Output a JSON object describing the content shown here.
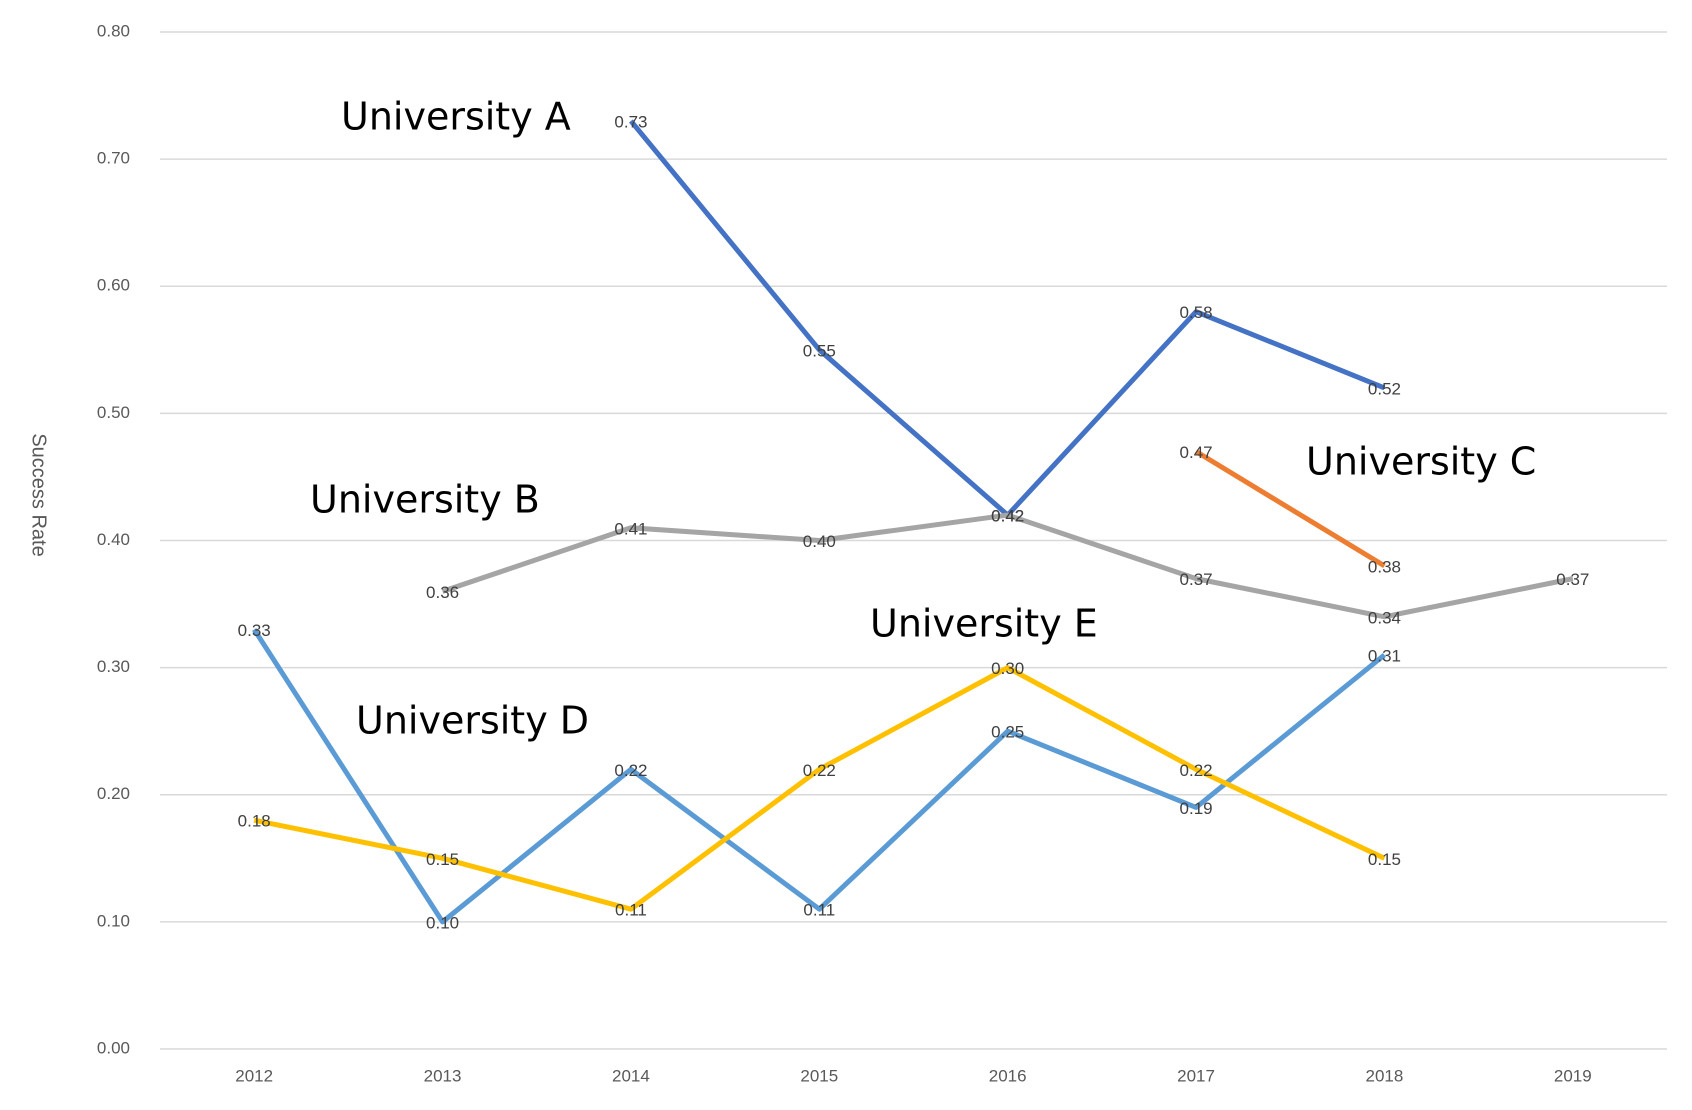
{
  "chart_data": {
    "type": "line",
    "y_label": "Success Rate",
    "categories": [
      "2012",
      "2013",
      "2014",
      "2015",
      "2016",
      "2017",
      "2018",
      "2019"
    ],
    "series": [
      {
        "name": "University A",
        "color": "#4472c4",
        "values": [
          null,
          null,
          0.73,
          0.55,
          0.42,
          0.58,
          0.52,
          null
        ]
      },
      {
        "name": "University B",
        "color": "#a5a5a5",
        "values": [
          null,
          0.36,
          0.41,
          0.4,
          0.42,
          0.37,
          0.34,
          0.37
        ]
      },
      {
        "name": "University C",
        "color": "#ed7d31",
        "values": [
          null,
          null,
          null,
          null,
          null,
          0.47,
          0.38,
          null
        ]
      },
      {
        "name": "University D",
        "color": "#5b9bd5",
        "values": [
          0.33,
          0.1,
          0.22,
          0.11,
          0.25,
          0.19,
          0.31,
          null
        ]
      },
      {
        "name": "University E",
        "color": "#ffc000",
        "values": [
          0.18,
          0.15,
          0.11,
          0.22,
          0.3,
          0.22,
          0.15,
          null
        ]
      }
    ],
    "value_labels": [
      [
        null,
        null,
        "0.73",
        "0.55",
        "0.42",
        "0.58",
        "0.52",
        null
      ],
      [
        null,
        "0.36",
        "0.41",
        "0.40",
        "0.42",
        "0.37",
        "0.34",
        "0.37"
      ],
      [
        null,
        null,
        null,
        null,
        null,
        "0.47",
        "0.38",
        null
      ],
      [
        "0.33",
        "0.10",
        "0.22",
        "0.11",
        "0.25",
        "0.19",
        "0.31",
        null
      ],
      [
        "0.18",
        "0.15",
        "0.11",
        "0.22",
        "0.30",
        "0.22",
        "0.15",
        null
      ]
    ],
    "ylim": [
      0,
      0.8
    ],
    "yticks": [
      {
        "value": 0,
        "label": "0.00"
      },
      {
        "value": 0.1,
        "label": "0.10"
      },
      {
        "value": 0.2,
        "label": "0.20"
      },
      {
        "value": 0.3,
        "label": "0.30"
      },
      {
        "value": 0.4,
        "label": "0.40"
      },
      {
        "value": 0.5,
        "label": "0.50"
      },
      {
        "value": 0.6,
        "label": "0.60"
      },
      {
        "value": 0.7,
        "label": "0.70"
      },
      {
        "value": 0.8,
        "label": "0.80"
      }
    ],
    "grid": true
  }
}
